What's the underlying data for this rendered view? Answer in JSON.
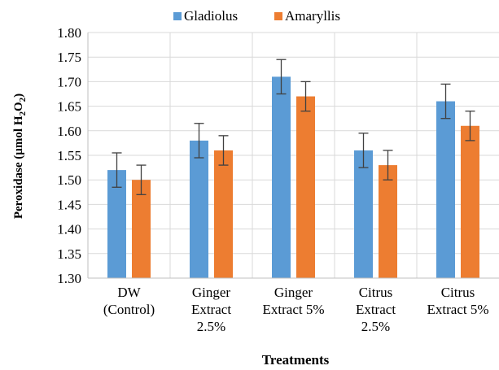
{
  "chart_data": {
    "type": "bar",
    "title": "",
    "xlabel": "Treatments",
    "ylabel": "Peroxidase (µmol H2O2)",
    "ylabel_parts": {
      "main": "Peroxidase (µmol H",
      "sub1": "2",
      "mid": "O",
      "sub2": "2",
      "end": ")"
    },
    "ylim": [
      1.3,
      1.8
    ],
    "yticks": [
      "1.30",
      "1.35",
      "1.40",
      "1.45",
      "1.50",
      "1.55",
      "1.60",
      "1.65",
      "1.70",
      "1.75",
      "1.80"
    ],
    "grid": true,
    "legend_position": "top",
    "categories": [
      [
        "DW",
        "(Control)"
      ],
      [
        "Ginger",
        "Extract",
        "2.5%"
      ],
      [
        "Ginger",
        "Extract 5%"
      ],
      [
        "Citrus",
        "Extract",
        "2.5%"
      ],
      [
        "Citrus",
        "Extract 5%"
      ]
    ],
    "series": [
      {
        "name": "Gladiolus",
        "color": "#5B9BD5",
        "values": [
          1.52,
          1.58,
          1.71,
          1.56,
          1.66
        ],
        "errors": [
          0.035,
          0.035,
          0.035,
          0.035,
          0.035
        ]
      },
      {
        "name": "Amaryllis",
        "color": "#ED7D31",
        "values": [
          1.5,
          1.56,
          1.67,
          1.53,
          1.61
        ],
        "errors": [
          0.03,
          0.03,
          0.03,
          0.03,
          0.03
        ]
      }
    ]
  }
}
